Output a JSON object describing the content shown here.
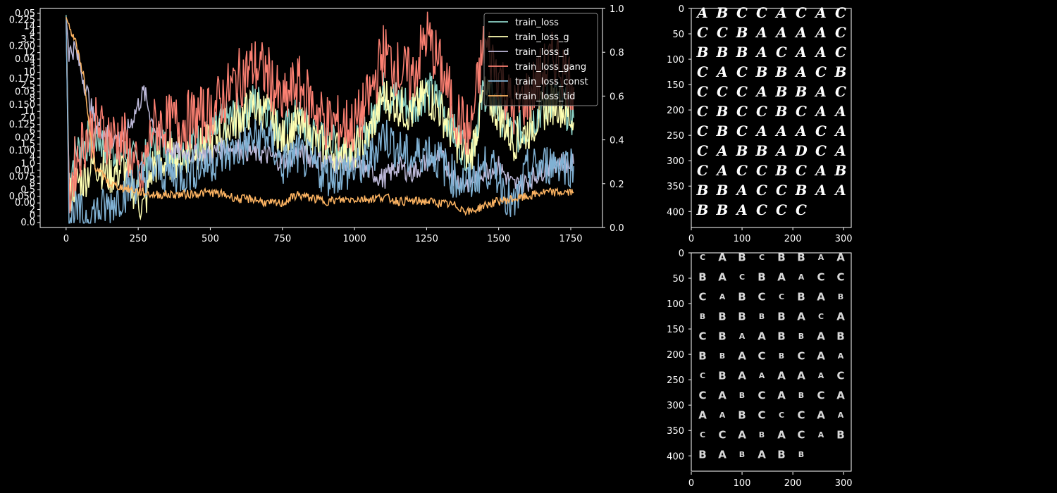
{
  "chart_data": [
    {
      "type": "line",
      "title": "",
      "xlabel": "",
      "ylabel": "",
      "xlim": [
        -90,
        1860
      ],
      "x_ticks": [
        0,
        250,
        500,
        750,
        1000,
        1250,
        1500,
        1750
      ],
      "right_axis": {
        "ylim": [
          0,
          1
        ],
        "ticks": [
          "0.0",
          "0.2",
          "0.4",
          "0.6",
          "0.8",
          "1.0"
        ]
      },
      "left_axis_overlapping_tick_labels": [
        "0.05",
        "0.225",
        "14",
        "4",
        "3.5",
        "0.200",
        "12",
        "0.04",
        "3",
        "10",
        "0.175",
        "2.5",
        "0.03",
        "8",
        "0.150",
        "11",
        "2.0",
        "0.125",
        "6",
        "0.02",
        "1.5",
        "0.100",
        "4",
        "1.0",
        "0.01",
        "0.075",
        "8",
        "0.5",
        "0.050",
        "0.00",
        "2",
        "0",
        "0.0"
      ],
      "legend_position": "top-right",
      "series": [
        {
          "name": "train_loss",
          "color": "#8dd3c7",
          "x": [
            0,
            10,
            30,
            60,
            100,
            150,
            200,
            260,
            300,
            400,
            500,
            550,
            600,
            650,
            700,
            750,
            800,
            900,
            1000,
            1050,
            1100,
            1150,
            1200,
            1250,
            1300,
            1350,
            1400,
            1450,
            1500,
            1550,
            1600,
            1650,
            1700,
            1760
          ],
          "values": [
            0.97,
            0.22,
            0.34,
            0.38,
            0.42,
            0.36,
            0.33,
            0.27,
            0.38,
            0.36,
            0.41,
            0.48,
            0.52,
            0.57,
            0.55,
            0.42,
            0.5,
            0.38,
            0.36,
            0.45,
            0.62,
            0.58,
            0.55,
            0.63,
            0.56,
            0.42,
            0.33,
            0.63,
            0.54,
            0.42,
            0.46,
            0.55,
            0.6,
            0.5
          ]
        },
        {
          "name": "train_loss_g",
          "color": "#ffffb3",
          "x": [
            0,
            10,
            30,
            60,
            100,
            150,
            200,
            270,
            300,
            400,
            500,
            550,
            600,
            650,
            700,
            750,
            800,
            900,
            1000,
            1050,
            1100,
            1150,
            1200,
            1250,
            1300,
            1350,
            1400,
            1450,
            1500,
            1550,
            1600,
            1650,
            1700,
            1760
          ],
          "values": [
            0.96,
            0.12,
            0.2,
            0.22,
            0.3,
            0.24,
            0.27,
            0.08,
            0.28,
            0.33,
            0.38,
            0.45,
            0.5,
            0.55,
            0.52,
            0.4,
            0.47,
            0.36,
            0.34,
            0.42,
            0.6,
            0.56,
            0.52,
            0.61,
            0.53,
            0.4,
            0.31,
            0.61,
            0.52,
            0.4,
            0.44,
            0.53,
            0.58,
            0.48
          ]
        },
        {
          "name": "train_loss_d",
          "color": "#bebada",
          "x": [
            0,
            10,
            30,
            60,
            100,
            150,
            200,
            250,
            270,
            300,
            350,
            400,
            500,
            550,
            600,
            650,
            700,
            750,
            800,
            900,
            1000,
            1050,
            1100,
            1150,
            1200,
            1250,
            1300,
            1350,
            1400,
            1450,
            1500,
            1550,
            1600,
            1650,
            1700,
            1760
          ],
          "values": [
            0.96,
            0.8,
            0.82,
            0.68,
            0.48,
            0.42,
            0.4,
            0.56,
            0.62,
            0.48,
            0.36,
            0.34,
            0.33,
            0.37,
            0.36,
            0.34,
            0.33,
            0.3,
            0.34,
            0.3,
            0.28,
            0.26,
            0.22,
            0.28,
            0.25,
            0.3,
            0.32,
            0.22,
            0.2,
            0.26,
            0.28,
            0.19,
            0.21,
            0.26,
            0.3,
            0.29
          ]
        },
        {
          "name": "train_loss_gang",
          "color": "#fb8072",
          "x": [
            0,
            10,
            30,
            60,
            100,
            150,
            200,
            260,
            300,
            400,
            500,
            550,
            600,
            650,
            700,
            750,
            800,
            900,
            1000,
            1050,
            1100,
            1150,
            1200,
            1250,
            1300,
            1350,
            1400,
            1450,
            1500,
            1550,
            1600,
            1650,
            1700,
            1760
          ],
          "values": [
            0.96,
            0.15,
            0.28,
            0.4,
            0.46,
            0.42,
            0.4,
            0.2,
            0.46,
            0.48,
            0.52,
            0.6,
            0.68,
            0.74,
            0.7,
            0.55,
            0.66,
            0.48,
            0.46,
            0.58,
            0.8,
            0.72,
            0.68,
            0.88,
            0.72,
            0.52,
            0.42,
            0.84,
            0.7,
            0.54,
            0.6,
            0.7,
            0.78,
            0.64
          ]
        },
        {
          "name": "train_loss_const",
          "color": "#80b1d3",
          "x": [
            0,
            10,
            30,
            60,
            100,
            150,
            200,
            250,
            300,
            400,
            500,
            550,
            600,
            650,
            700,
            750,
            800,
            900,
            1000,
            1050,
            1100,
            1150,
            1200,
            1250,
            1300,
            1350,
            1400,
            1450,
            1500,
            1550,
            1600,
            1650,
            1700,
            1760
          ],
          "values": [
            0.96,
            0.04,
            0.07,
            0.05,
            0.07,
            0.1,
            0.16,
            0.21,
            0.26,
            0.24,
            0.3,
            0.33,
            0.36,
            0.4,
            0.42,
            0.28,
            0.34,
            0.24,
            0.26,
            0.3,
            0.43,
            0.36,
            0.31,
            0.36,
            0.3,
            0.22,
            0.2,
            0.28,
            0.24,
            0.08,
            0.26,
            0.28,
            0.3,
            0.28
          ]
        },
        {
          "name": "train_loss_tid",
          "color": "#fdb462",
          "x": [
            0,
            10,
            30,
            60,
            80,
            100,
            150,
            200,
            300,
            400,
            500,
            550,
            600,
            650,
            700,
            750,
            800,
            900,
            1000,
            1050,
            1100,
            1150,
            1200,
            1250,
            1300,
            1350,
            1400,
            1450,
            1500,
            1550,
            1600,
            1650,
            1700,
            1760
          ],
          "values": [
            0.96,
            0.92,
            0.86,
            0.7,
            0.45,
            0.28,
            0.2,
            0.18,
            0.15,
            0.15,
            0.16,
            0.15,
            0.13,
            0.13,
            0.11,
            0.11,
            0.15,
            0.12,
            0.13,
            0.13,
            0.14,
            0.12,
            0.12,
            0.12,
            0.11,
            0.1,
            0.07,
            0.1,
            0.12,
            0.13,
            0.14,
            0.16,
            0.16,
            0.16
          ]
        }
      ]
    },
    {
      "type": "image",
      "image_kind": "handwritten character grid",
      "x_ticks": [
        0,
        100,
        200,
        300
      ],
      "y_ticks": [
        0,
        50,
        100,
        150,
        200,
        250,
        300,
        350,
        400
      ],
      "rows": [
        [
          "A",
          "B",
          "C",
          "C",
          "A",
          "C",
          "A",
          "C"
        ],
        [
          "C",
          "C",
          "B",
          "A",
          "A",
          "A",
          "A",
          "C"
        ],
        [
          "B",
          "B",
          "B",
          "A",
          "C",
          "A",
          "A",
          "C"
        ],
        [
          "C",
          "A",
          "C",
          "B",
          "B",
          "A",
          "C",
          "B"
        ],
        [
          "C",
          "C",
          "C",
          "A",
          "B",
          "B",
          "A",
          "C"
        ],
        [
          "C",
          "B",
          "C",
          "C",
          "B",
          "C",
          "A",
          "A"
        ],
        [
          "C",
          "B",
          "C",
          "A",
          "A",
          "A",
          "C",
          "A"
        ],
        [
          "C",
          "A",
          "B",
          "B",
          "A",
          "D",
          "C",
          "A"
        ],
        [
          "C",
          "A",
          "C",
          "C",
          "B",
          "C",
          "A",
          "B"
        ],
        [
          "B",
          "B",
          "A",
          "C",
          "C",
          "B",
          "A",
          "A"
        ],
        [
          "B",
          "B",
          "A",
          "C",
          "C",
          "C"
        ]
      ]
    },
    {
      "type": "image",
      "image_kind": "generated character grid",
      "x_ticks": [
        0,
        100,
        200,
        300
      ],
      "y_ticks": [
        0,
        50,
        100,
        150,
        200,
        250,
        300,
        350,
        400
      ],
      "rows": [
        [
          "C",
          "A",
          "B",
          "C",
          "B",
          "B",
          "A",
          "A"
        ],
        [
          "B",
          "A",
          "C",
          "B",
          "A",
          "A",
          "C",
          "C"
        ],
        [
          "C",
          "A",
          "B",
          "C",
          "C",
          "B",
          "A",
          "B"
        ],
        [
          "B",
          "B",
          "B",
          "B",
          "B",
          "A",
          "C",
          "A"
        ],
        [
          "C",
          "B",
          "A",
          "A",
          "B",
          "B",
          "A",
          "B"
        ],
        [
          "B",
          "B",
          "A",
          "C",
          "B",
          "C",
          "A",
          "A"
        ],
        [
          "C",
          "B",
          "A",
          "A",
          "A",
          "A",
          "A",
          "C"
        ],
        [
          "C",
          "A",
          "B",
          "C",
          "A",
          "B",
          "C",
          "A"
        ],
        [
          "A",
          "A",
          "B",
          "C",
          "C",
          "C",
          "A",
          "A"
        ],
        [
          "C",
          "C",
          "A",
          "B",
          "A",
          "C",
          "A",
          "B"
        ],
        [
          "B",
          "A",
          "B",
          "A",
          "B",
          "B"
        ]
      ]
    }
  ]
}
